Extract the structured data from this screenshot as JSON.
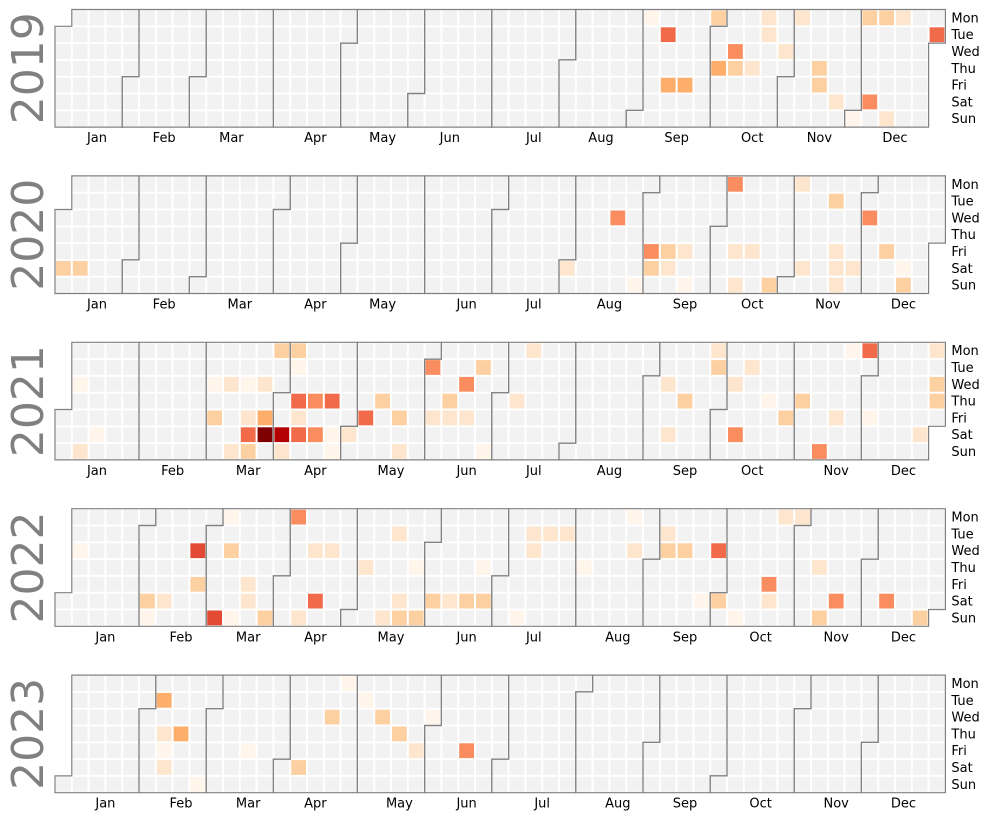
{
  "chart_data": {
    "type": "heatmap",
    "subtype": "calendar",
    "years": [
      2019,
      2020,
      2021,
      2022,
      2023
    ],
    "months": [
      "Jan",
      "Feb",
      "Mar",
      "Apr",
      "May",
      "Jun",
      "Jul",
      "Aug",
      "Sep",
      "Oct",
      "Nov",
      "Dec"
    ],
    "weekdays": [
      "Mon",
      "Tue",
      "Wed",
      "Thu",
      "Fri",
      "Sat",
      "Sun"
    ],
    "colors": {
      "empty": "#f2f2f2",
      "grid": "#ffffff",
      "border": "#808080",
      "scale": [
        "#fff5eb",
        "#fee6ce",
        "#fdd0a2",
        "#fdae6b",
        "#f98d5f",
        "#f16a4a",
        "#e34a33",
        "#b30000",
        "#7f0000"
      ]
    },
    "value_range": [
      0,
      8
    ],
    "values": {
      "2019": [
        [
          "2019-09-02",
          0
        ],
        [
          "2019-09-10",
          5
        ],
        [
          "2019-09-13",
          3
        ],
        [
          "2019-09-20",
          3
        ],
        [
          "2019-09-30",
          2
        ],
        [
          "2019-10-03",
          3
        ],
        [
          "2019-10-09",
          4
        ],
        [
          "2019-10-10",
          2
        ],
        [
          "2019-10-17",
          1
        ],
        [
          "2019-10-21",
          1
        ],
        [
          "2019-10-22",
          1
        ],
        [
          "2019-10-30",
          1
        ],
        [
          "2019-11-04",
          1
        ],
        [
          "2019-11-14",
          2
        ],
        [
          "2019-11-15",
          2
        ],
        [
          "2019-11-23",
          1
        ],
        [
          "2019-12-01",
          0
        ],
        [
          "2019-12-02",
          2
        ],
        [
          "2019-12-07",
          4
        ],
        [
          "2019-12-09",
          2
        ],
        [
          "2019-12-15",
          1
        ],
        [
          "2019-12-16",
          1
        ],
        [
          "2019-12-31",
          5
        ]
      ],
      "2020": [
        [
          "2020-01-04",
          2
        ],
        [
          "2020-01-11",
          2
        ],
        [
          "2020-08-01",
          1
        ],
        [
          "2020-08-19",
          4
        ],
        [
          "2020-08-30",
          0
        ],
        [
          "2020-09-04",
          4
        ],
        [
          "2020-09-05",
          2
        ],
        [
          "2020-09-11",
          2
        ],
        [
          "2020-09-18",
          1
        ],
        [
          "2020-09-12",
          1
        ],
        [
          "2020-09-20",
          0
        ],
        [
          "2020-10-05",
          4
        ],
        [
          "2020-10-09",
          1
        ],
        [
          "2020-10-11",
          1
        ],
        [
          "2020-10-16",
          1
        ],
        [
          "2020-10-25",
          2
        ],
        [
          "2020-11-02",
          1
        ],
        [
          "2020-11-07",
          1
        ],
        [
          "2020-11-17",
          2
        ],
        [
          "2020-11-20",
          1
        ],
        [
          "2020-11-21",
          1
        ],
        [
          "2020-11-22",
          1
        ],
        [
          "2020-11-28",
          1
        ],
        [
          "2020-12-02",
          4
        ],
        [
          "2020-12-11",
          2
        ],
        [
          "2020-12-19",
          0
        ],
        [
          "2020-12-20",
          2
        ]
      ],
      "2021": [
        [
          "2021-01-06",
          0
        ],
        [
          "2021-01-10",
          1
        ],
        [
          "2021-01-16",
          0
        ],
        [
          "2021-03-03",
          0
        ],
        [
          "2021-03-05",
          2
        ],
        [
          "2021-03-10",
          1
        ],
        [
          "2021-03-14",
          1
        ],
        [
          "2021-03-17",
          0
        ],
        [
          "2021-03-19",
          1
        ],
        [
          "2021-03-20",
          5
        ],
        [
          "2021-03-21",
          2
        ],
        [
          "2021-03-24",
          1
        ],
        [
          "2021-03-26",
          3
        ],
        [
          "2021-03-27",
          8
        ],
        [
          "2021-03-29",
          2
        ],
        [
          "2021-04-03",
          7
        ],
        [
          "2021-04-04",
          1
        ],
        [
          "2021-04-05",
          2
        ],
        [
          "2021-04-06",
          0
        ],
        [
          "2021-04-08",
          5
        ],
        [
          "2021-04-09",
          1
        ],
        [
          "2021-04-10",
          5
        ],
        [
          "2021-04-15",
          4
        ],
        [
          "2021-04-17",
          4
        ],
        [
          "2021-04-22",
          5
        ],
        [
          "2021-04-24",
          0
        ],
        [
          "2021-04-25",
          0
        ],
        [
          "2021-05-01",
          1
        ],
        [
          "2021-05-07",
          5
        ],
        [
          "2021-05-13",
          2
        ],
        [
          "2021-05-21",
          2
        ],
        [
          "2021-05-23",
          1
        ],
        [
          "2021-06-01",
          4
        ],
        [
          "2021-06-04",
          1
        ],
        [
          "2021-06-10",
          2
        ],
        [
          "2021-06-11",
          1
        ],
        [
          "2021-06-16",
          4
        ],
        [
          "2021-06-18",
          1
        ],
        [
          "2021-06-22",
          2
        ],
        [
          "2021-06-27",
          0
        ],
        [
          "2021-07-08",
          1
        ],
        [
          "2021-07-12",
          1
        ],
        [
          "2021-09-08",
          1
        ],
        [
          "2021-09-11",
          1
        ],
        [
          "2021-09-16",
          2
        ],
        [
          "2021-09-27",
          1
        ],
        [
          "2021-09-28",
          2
        ],
        [
          "2021-10-06",
          1
        ],
        [
          "2021-10-09",
          4
        ],
        [
          "2021-10-12",
          1
        ],
        [
          "2021-10-21",
          0
        ],
        [
          "2021-10-29",
          2
        ],
        [
          "2021-11-04",
          2
        ],
        [
          "2021-11-14",
          4
        ],
        [
          "2021-11-19",
          1
        ],
        [
          "2021-11-22",
          0
        ],
        [
          "2021-11-29",
          5
        ],
        [
          "2021-12-03",
          0
        ],
        [
          "2021-12-25",
          1
        ],
        [
          "2021-12-27",
          1
        ],
        [
          "2021-12-29",
          2
        ],
        [
          "2021-12-30",
          2
        ]
      ],
      "2022": [
        [
          "2022-01-05",
          0
        ],
        [
          "2022-02-05",
          2
        ],
        [
          "2022-02-06",
          0
        ],
        [
          "2022-02-12",
          1
        ],
        [
          "2022-02-23",
          6
        ],
        [
          "2022-02-25",
          2
        ],
        [
          "2022-03-06",
          6
        ],
        [
          "2022-03-07",
          0
        ],
        [
          "2022-03-09",
          2
        ],
        [
          "2022-03-13",
          0
        ],
        [
          "2022-03-18",
          1
        ],
        [
          "2022-03-19",
          1
        ],
        [
          "2022-03-27",
          2
        ],
        [
          "2022-04-04",
          4
        ],
        [
          "2022-04-10",
          1
        ],
        [
          "2022-04-13",
          1
        ],
        [
          "2022-04-16",
          5
        ],
        [
          "2022-04-20",
          1
        ],
        [
          "2022-05-05",
          1
        ],
        [
          "2022-05-15",
          1
        ],
        [
          "2022-05-17",
          1
        ],
        [
          "2022-05-21",
          1
        ],
        [
          "2022-05-22",
          2
        ],
        [
          "2022-05-26",
          0
        ],
        [
          "2022-05-29",
          2
        ],
        [
          "2022-06-04",
          2
        ],
        [
          "2022-06-11",
          1
        ],
        [
          "2022-06-18",
          2
        ],
        [
          "2022-06-23",
          0
        ],
        [
          "2022-06-25",
          2
        ],
        [
          "2022-07-10",
          0
        ],
        [
          "2022-07-12",
          1
        ],
        [
          "2022-07-13",
          1
        ],
        [
          "2022-07-19",
          1
        ],
        [
          "2022-07-26",
          1
        ],
        [
          "2022-08-04",
          0
        ],
        [
          "2022-08-22",
          0
        ],
        [
          "2022-08-24",
          1
        ],
        [
          "2022-09-06",
          1
        ],
        [
          "2022-09-07",
          2
        ],
        [
          "2022-09-14",
          2
        ],
        [
          "2022-09-24",
          0
        ],
        [
          "2022-09-28",
          5
        ],
        [
          "2022-10-01",
          2
        ],
        [
          "2022-10-09",
          0
        ],
        [
          "2022-10-21",
          4
        ],
        [
          "2022-10-22",
          1
        ],
        [
          "2022-10-24",
          1
        ],
        [
          "2022-10-31",
          1
        ],
        [
          "2022-11-10",
          1
        ],
        [
          "2022-11-13",
          2
        ],
        [
          "2022-11-19",
          4
        ],
        [
          "2022-12-10",
          4
        ],
        [
          "2022-12-25",
          2
        ]
      ],
      "2023": [
        [
          "2023-02-07",
          3
        ],
        [
          "2023-02-09",
          1
        ],
        [
          "2023-02-10",
          0
        ],
        [
          "2023-02-11",
          1
        ],
        [
          "2023-02-16",
          3
        ],
        [
          "2023-02-26",
          0
        ],
        [
          "2023-03-17",
          0
        ],
        [
          "2023-04-08",
          2
        ],
        [
          "2023-04-19",
          2
        ],
        [
          "2023-04-24",
          0
        ],
        [
          "2023-05-02",
          0
        ],
        [
          "2023-05-10",
          2
        ],
        [
          "2023-05-18",
          2
        ],
        [
          "2023-05-26",
          1
        ],
        [
          "2023-05-31",
          0
        ],
        [
          "2023-06-16",
          4
        ]
      ]
    }
  }
}
